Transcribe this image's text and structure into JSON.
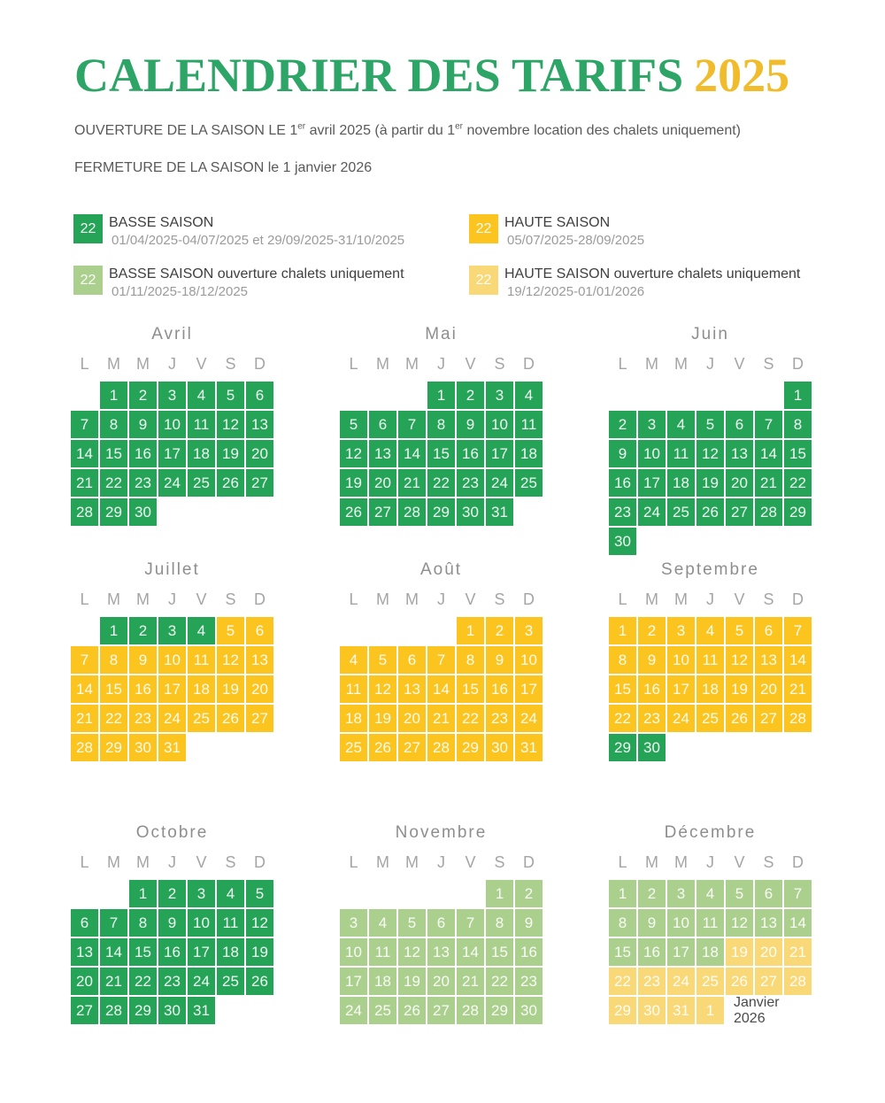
{
  "header": {
    "title": "CALENDRIER DES TARIFS",
    "year": "2025"
  },
  "subtitles": {
    "opening": {
      "p1": "OUVERTURE DE LA SAISON LE 1",
      "sup1": "er",
      "p2": " avril 2025 (à partir du 1",
      "sup2": "er",
      "p3": " novembre location des chalets uniquement)"
    },
    "closing": "FERMETURE DE LA SAISON le 1 janvier 2026"
  },
  "colors": {
    "seasons": {
      "L": "#25a457",
      "H": "#fbc41e",
      "LC": "#abd08d",
      "HC": "#f9d877"
    },
    "title_green": "#2ca566",
    "title_gold": "#f0bc2b"
  },
  "legend": [
    {
      "code": "L",
      "sample": "22",
      "label": "BASSE SAISON",
      "dates": "01/04/2025-04/07/2025 et 29/09/2025-31/10/2025"
    },
    {
      "code": "LC",
      "sample": "22",
      "label": "BASSE SAISON ouverture chalets uniquement",
      "dates": "01/11/2025-18/12/2025"
    },
    {
      "code": "H",
      "sample": "22",
      "label": "HAUTE SAISON",
      "dates": "05/07/2025-28/09/2025"
    },
    {
      "code": "HC",
      "sample": "22",
      "label": "HAUTE SAISON ouverture chalets uniquement",
      "dates": "19/12/2025-01/01/2026"
    }
  ],
  "weekdays": [
    "L",
    "M",
    "M",
    "J",
    "V",
    "S",
    "D"
  ],
  "months": [
    {
      "id": "avril",
      "name": "Avril",
      "weeks": [
        [
          null,
          [
            1,
            "L"
          ],
          [
            2,
            "L"
          ],
          [
            3,
            "L"
          ],
          [
            4,
            "L"
          ],
          [
            5,
            "L"
          ],
          [
            6,
            "L"
          ]
        ],
        [
          [
            7,
            "L"
          ],
          [
            8,
            "L"
          ],
          [
            9,
            "L"
          ],
          [
            10,
            "L"
          ],
          [
            11,
            "L"
          ],
          [
            12,
            "L"
          ],
          [
            13,
            "L"
          ]
        ],
        [
          [
            14,
            "L"
          ],
          [
            15,
            "L"
          ],
          [
            16,
            "L"
          ],
          [
            17,
            "L"
          ],
          [
            18,
            "L"
          ],
          [
            19,
            "L"
          ],
          [
            20,
            "L"
          ]
        ],
        [
          [
            21,
            "L"
          ],
          [
            22,
            "L"
          ],
          [
            23,
            "L"
          ],
          [
            24,
            "L"
          ],
          [
            25,
            "L"
          ],
          [
            26,
            "L"
          ],
          [
            27,
            "L"
          ]
        ],
        [
          [
            28,
            "L"
          ],
          [
            29,
            "L"
          ],
          [
            30,
            "L"
          ],
          null,
          null,
          null,
          null
        ]
      ]
    },
    {
      "id": "mai",
      "name": "Mai",
      "weeks": [
        [
          null,
          null,
          null,
          [
            1,
            "L"
          ],
          [
            2,
            "L"
          ],
          [
            3,
            "L"
          ],
          [
            4,
            "L"
          ]
        ],
        [
          [
            5,
            "L"
          ],
          [
            6,
            "L"
          ],
          [
            7,
            "L"
          ],
          [
            8,
            "L"
          ],
          [
            9,
            "L"
          ],
          [
            10,
            "L"
          ],
          [
            11,
            "L"
          ]
        ],
        [
          [
            12,
            "L"
          ],
          [
            13,
            "L"
          ],
          [
            14,
            "L"
          ],
          [
            15,
            "L"
          ],
          [
            16,
            "L"
          ],
          [
            17,
            "L"
          ],
          [
            18,
            "L"
          ]
        ],
        [
          [
            19,
            "L"
          ],
          [
            20,
            "L"
          ],
          [
            21,
            "L"
          ],
          [
            22,
            "L"
          ],
          [
            23,
            "L"
          ],
          [
            24,
            "L"
          ],
          [
            25,
            "L"
          ]
        ],
        [
          [
            26,
            "L"
          ],
          [
            27,
            "L"
          ],
          [
            28,
            "L"
          ],
          [
            29,
            "L"
          ],
          [
            30,
            "L"
          ],
          [
            31,
            "L"
          ],
          null
        ]
      ]
    },
    {
      "id": "juin",
      "name": "Juin",
      "weeks": [
        [
          null,
          null,
          null,
          null,
          null,
          null,
          [
            1,
            "L"
          ]
        ],
        [
          [
            2,
            "L"
          ],
          [
            3,
            "L"
          ],
          [
            4,
            "L"
          ],
          [
            5,
            "L"
          ],
          [
            6,
            "L"
          ],
          [
            7,
            "L"
          ],
          [
            8,
            "L"
          ]
        ],
        [
          [
            9,
            "L"
          ],
          [
            10,
            "L"
          ],
          [
            11,
            "L"
          ],
          [
            12,
            "L"
          ],
          [
            13,
            "L"
          ],
          [
            14,
            "L"
          ],
          [
            15,
            "L"
          ]
        ],
        [
          [
            16,
            "L"
          ],
          [
            17,
            "L"
          ],
          [
            18,
            "L"
          ],
          [
            19,
            "L"
          ],
          [
            20,
            "L"
          ],
          [
            21,
            "L"
          ],
          [
            22,
            "L"
          ]
        ],
        [
          [
            23,
            "L"
          ],
          [
            24,
            "L"
          ],
          [
            25,
            "L"
          ],
          [
            26,
            "L"
          ],
          [
            27,
            "L"
          ],
          [
            28,
            "L"
          ],
          [
            29,
            "L"
          ]
        ],
        [
          [
            30,
            "L"
          ],
          null,
          null,
          null,
          null,
          null,
          null
        ]
      ]
    },
    {
      "id": "juillet",
      "name": "Juillet",
      "weeks": [
        [
          null,
          [
            1,
            "L"
          ],
          [
            2,
            "L"
          ],
          [
            3,
            "L"
          ],
          [
            4,
            "L"
          ],
          [
            5,
            "H"
          ],
          [
            6,
            "H"
          ]
        ],
        [
          [
            7,
            "H"
          ],
          [
            8,
            "H"
          ],
          [
            9,
            "H"
          ],
          [
            10,
            "H"
          ],
          [
            11,
            "H"
          ],
          [
            12,
            "H"
          ],
          [
            13,
            "H"
          ]
        ],
        [
          [
            14,
            "H"
          ],
          [
            15,
            "H"
          ],
          [
            16,
            "H"
          ],
          [
            17,
            "H"
          ],
          [
            18,
            "H"
          ],
          [
            19,
            "H"
          ],
          [
            20,
            "H"
          ]
        ],
        [
          [
            21,
            "H"
          ],
          [
            22,
            "H"
          ],
          [
            23,
            "H"
          ],
          [
            24,
            "H"
          ],
          [
            25,
            "H"
          ],
          [
            26,
            "H"
          ],
          [
            27,
            "H"
          ]
        ],
        [
          [
            28,
            "H"
          ],
          [
            29,
            "H"
          ],
          [
            30,
            "H"
          ],
          [
            31,
            "H"
          ],
          null,
          null,
          null
        ]
      ]
    },
    {
      "id": "aout",
      "name": "Août",
      "weeks": [
        [
          null,
          null,
          null,
          null,
          [
            1,
            "H"
          ],
          [
            2,
            "H"
          ],
          [
            3,
            "H"
          ]
        ],
        [
          [
            4,
            "H"
          ],
          [
            5,
            "H"
          ],
          [
            6,
            "H"
          ],
          [
            7,
            "H"
          ],
          [
            8,
            "H"
          ],
          [
            9,
            "H"
          ],
          [
            10,
            "H"
          ]
        ],
        [
          [
            11,
            "H"
          ],
          [
            12,
            "H"
          ],
          [
            13,
            "H"
          ],
          [
            14,
            "H"
          ],
          [
            15,
            "H"
          ],
          [
            16,
            "H"
          ],
          [
            17,
            "H"
          ]
        ],
        [
          [
            18,
            "H"
          ],
          [
            19,
            "H"
          ],
          [
            20,
            "H"
          ],
          [
            21,
            "H"
          ],
          [
            22,
            "H"
          ],
          [
            23,
            "H"
          ],
          [
            24,
            "H"
          ]
        ],
        [
          [
            25,
            "H"
          ],
          [
            26,
            "H"
          ],
          [
            27,
            "H"
          ],
          [
            28,
            "H"
          ],
          [
            29,
            "H"
          ],
          [
            30,
            "H"
          ],
          [
            31,
            "H"
          ]
        ]
      ]
    },
    {
      "id": "septembre",
      "name": "Septembre",
      "weeks": [
        [
          [
            1,
            "H"
          ],
          [
            2,
            "H"
          ],
          [
            3,
            "H"
          ],
          [
            4,
            "H"
          ],
          [
            5,
            "H"
          ],
          [
            6,
            "H"
          ],
          [
            7,
            "H"
          ]
        ],
        [
          [
            8,
            "H"
          ],
          [
            9,
            "H"
          ],
          [
            10,
            "H"
          ],
          [
            11,
            "H"
          ],
          [
            12,
            "H"
          ],
          [
            13,
            "H"
          ],
          [
            14,
            "H"
          ]
        ],
        [
          [
            15,
            "H"
          ],
          [
            16,
            "H"
          ],
          [
            17,
            "H"
          ],
          [
            18,
            "H"
          ],
          [
            19,
            "H"
          ],
          [
            20,
            "H"
          ],
          [
            21,
            "H"
          ]
        ],
        [
          [
            22,
            "H"
          ],
          [
            23,
            "H"
          ],
          [
            24,
            "H"
          ],
          [
            25,
            "H"
          ],
          [
            26,
            "H"
          ],
          [
            27,
            "H"
          ],
          [
            28,
            "H"
          ]
        ],
        [
          [
            29,
            "L"
          ],
          [
            30,
            "L"
          ],
          null,
          null,
          null,
          null,
          null
        ]
      ]
    },
    {
      "id": "octobre",
      "name": "Octobre",
      "weeks": [
        [
          null,
          null,
          [
            1,
            "L"
          ],
          [
            2,
            "L"
          ],
          [
            3,
            "L"
          ],
          [
            4,
            "L"
          ],
          [
            5,
            "L"
          ]
        ],
        [
          [
            6,
            "L"
          ],
          [
            7,
            "L"
          ],
          [
            8,
            "L"
          ],
          [
            9,
            "L"
          ],
          [
            10,
            "L"
          ],
          [
            11,
            "L"
          ],
          [
            12,
            "L"
          ]
        ],
        [
          [
            13,
            "L"
          ],
          [
            14,
            "L"
          ],
          [
            15,
            "L"
          ],
          [
            16,
            "L"
          ],
          [
            17,
            "L"
          ],
          [
            18,
            "L"
          ],
          [
            19,
            "L"
          ]
        ],
        [
          [
            20,
            "L"
          ],
          [
            21,
            "L"
          ],
          [
            22,
            "L"
          ],
          [
            23,
            "L"
          ],
          [
            24,
            "L"
          ],
          [
            25,
            "L"
          ],
          [
            26,
            "L"
          ]
        ],
        [
          [
            27,
            "L"
          ],
          [
            28,
            "L"
          ],
          [
            29,
            "L"
          ],
          [
            30,
            "L"
          ],
          [
            31,
            "L"
          ],
          null,
          null
        ]
      ]
    },
    {
      "id": "novembre",
      "name": "Novembre",
      "weeks": [
        [
          null,
          null,
          null,
          null,
          null,
          [
            1,
            "LC"
          ],
          [
            2,
            "LC"
          ]
        ],
        [
          [
            3,
            "LC"
          ],
          [
            4,
            "LC"
          ],
          [
            5,
            "LC"
          ],
          [
            6,
            "LC"
          ],
          [
            7,
            "LC"
          ],
          [
            8,
            "LC"
          ],
          [
            9,
            "LC"
          ]
        ],
        [
          [
            10,
            "LC"
          ],
          [
            11,
            "LC"
          ],
          [
            12,
            "LC"
          ],
          [
            13,
            "LC"
          ],
          [
            14,
            "LC"
          ],
          [
            15,
            "LC"
          ],
          [
            16,
            "LC"
          ]
        ],
        [
          [
            17,
            "LC"
          ],
          [
            18,
            "LC"
          ],
          [
            19,
            "LC"
          ],
          [
            20,
            "LC"
          ],
          [
            21,
            "LC"
          ],
          [
            22,
            "LC"
          ],
          [
            23,
            "LC"
          ]
        ],
        [
          [
            24,
            "LC"
          ],
          [
            25,
            "LC"
          ],
          [
            26,
            "LC"
          ],
          [
            27,
            "LC"
          ],
          [
            28,
            "LC"
          ],
          [
            29,
            "LC"
          ],
          [
            30,
            "LC"
          ]
        ]
      ]
    },
    {
      "id": "decembre",
      "name": "Décembre",
      "weeks": [
        [
          [
            1,
            "LC"
          ],
          [
            2,
            "LC"
          ],
          [
            3,
            "LC"
          ],
          [
            4,
            "LC"
          ],
          [
            5,
            "LC"
          ],
          [
            6,
            "LC"
          ],
          [
            7,
            "LC"
          ]
        ],
        [
          [
            8,
            "LC"
          ],
          [
            9,
            "LC"
          ],
          [
            10,
            "LC"
          ],
          [
            11,
            "LC"
          ],
          [
            12,
            "LC"
          ],
          [
            13,
            "LC"
          ],
          [
            14,
            "LC"
          ]
        ],
        [
          [
            15,
            "LC"
          ],
          [
            16,
            "LC"
          ],
          [
            17,
            "LC"
          ],
          [
            18,
            "LC"
          ],
          [
            19,
            "HC"
          ],
          [
            20,
            "HC"
          ],
          [
            21,
            "HC"
          ]
        ],
        [
          [
            22,
            "HC"
          ],
          [
            23,
            "HC"
          ],
          [
            24,
            "HC"
          ],
          [
            25,
            "HC"
          ],
          [
            26,
            "HC"
          ],
          [
            27,
            "HC"
          ],
          [
            28,
            "HC"
          ]
        ],
        [
          [
            29,
            "HC"
          ],
          [
            30,
            "HC"
          ],
          [
            31,
            "HC"
          ],
          [
            1,
            "HC"
          ],
          {
            "note": "Janvier 2026",
            "span": 3
          }
        ]
      ]
    }
  ]
}
